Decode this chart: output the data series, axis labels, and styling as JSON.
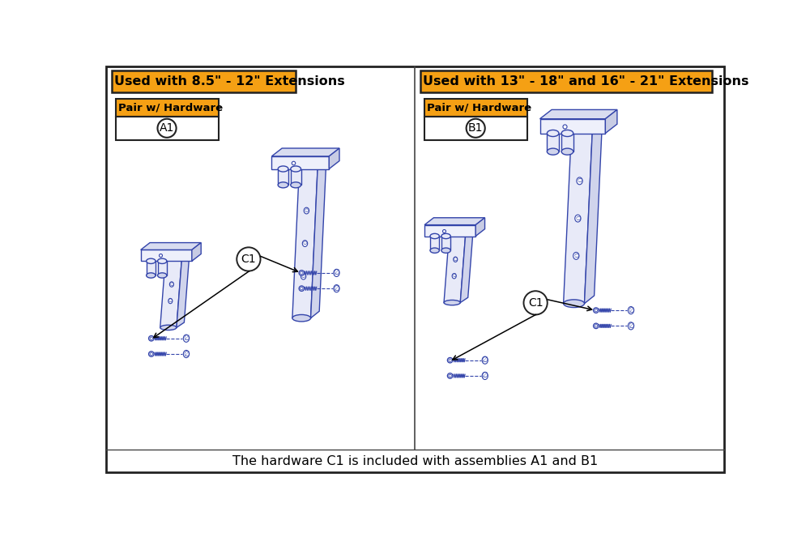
{
  "title_left": "Used with 8.5\" - 12\" Extensions",
  "title_right": "Used with 13\" - 18\" and 16\" - 21\" Extensions",
  "label_pair": "Pair w/ Hardware",
  "label_a1": "A1",
  "label_b1": "B1",
  "label_c1": "C1",
  "footer": "The hardware C1 is included with assemblies A1 and B1",
  "orange_color": "#F5A014",
  "blue_color": "#3344AA",
  "border_color": "#333333",
  "face_color": "#EEF0FB",
  "top_color": "#D8DCF0",
  "side_color": "#C8CCE4",
  "leg_face": "#E8EAF8",
  "leg_side": "#D0D4EC"
}
